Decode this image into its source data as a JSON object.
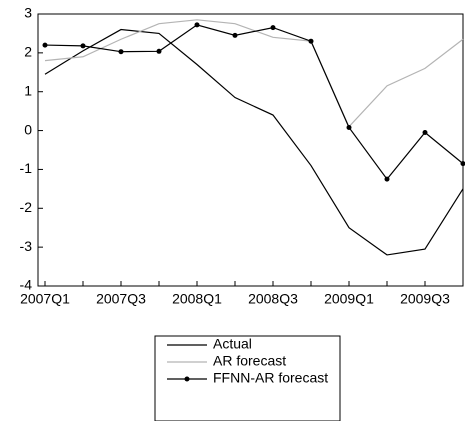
{
  "chart_data": {
    "type": "line",
    "categories": [
      "2007Q1",
      null,
      "2007Q3",
      null,
      "2008Q1",
      null,
      "2008Q3",
      null,
      "2009Q1",
      null,
      "2009Q3",
      null
    ],
    "series": [
      {
        "name": "Actual",
        "color": "#000000",
        "marker": false,
        "values": [
          1.45,
          2.05,
          2.6,
          2.5,
          1.7,
          0.85,
          0.4,
          -0.9,
          -2.5,
          -3.2,
          -3.05,
          -1.5
        ]
      },
      {
        "name": "AR forecast",
        "color": "#b4b4b4",
        "marker": false,
        "values": [
          1.8,
          1.9,
          2.35,
          2.75,
          2.85,
          2.75,
          2.4,
          2.3,
          0.1,
          1.15,
          1.6,
          2.35
        ]
      },
      {
        "name": "FFNN-AR forecast",
        "color": "#000000",
        "marker": true,
        "values": [
          2.2,
          2.18,
          2.03,
          2.04,
          2.72,
          2.45,
          2.65,
          2.3,
          0.08,
          -1.25,
          -0.05,
          -0.85
        ]
      }
    ],
    "ylim": [
      -4,
      3
    ],
    "yticks": [
      -4,
      -3,
      -2,
      -1,
      0,
      1,
      2,
      3
    ],
    "grid": false,
    "legend": "bottom"
  }
}
